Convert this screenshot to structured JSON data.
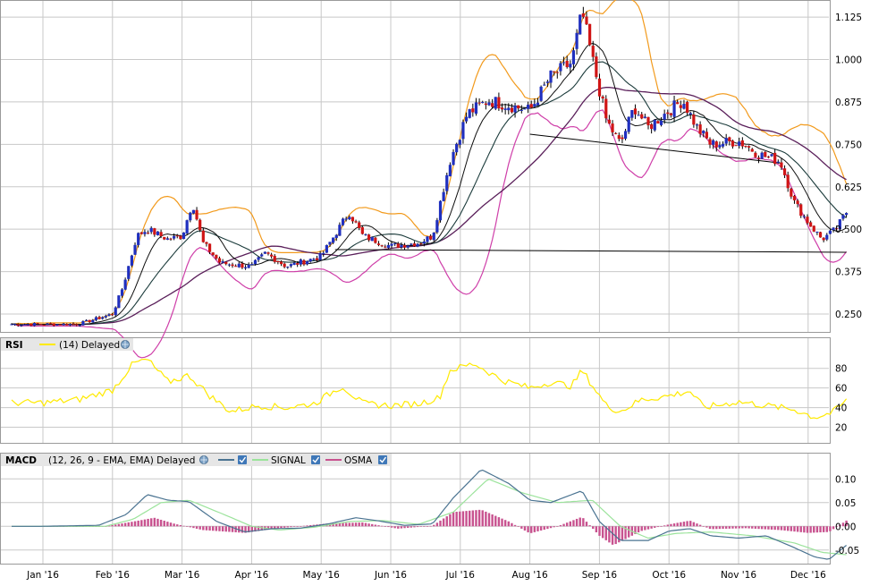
{
  "colors": {
    "up_candle": "#1f2fbf",
    "down_candle": "#d01515",
    "wick": "#000000",
    "bollinger": "#f29a1c",
    "env_lower": "#cf3fa9",
    "ma_long": "#5a1f5a",
    "ma_mid": "#1b3b3b",
    "ma_short": "#0e0e0e",
    "rsi_line": "#ffea00",
    "macd_line": "#4a7391",
    "signal_line": "#9be39b",
    "osma_bar": "#c8528f",
    "grid": "#c8c8c8",
    "panel_header_bg": "#e6e6e6",
    "trendline": "#000000"
  },
  "price_panel": {
    "y_ticks": [
      "1.125",
      "1.000",
      "0.875",
      "0.750",
      "0.625",
      "0.500",
      "0.375",
      "0.250"
    ]
  },
  "rsi_panel": {
    "title": "RSI",
    "legend": "(14) Delayed",
    "legend_icon": "globe-icon",
    "y_ticks": [
      "80",
      "60",
      "40",
      "20"
    ]
  },
  "macd_panel": {
    "title": "MACD",
    "legend_params": "(12, 26, 9 - EMA, EMA) Delayed",
    "signal_label": "SIGNAL",
    "osma_label": "OSMA",
    "y_ticks": [
      "0.10",
      "0.05",
      "0.00",
      "-0.05"
    ]
  },
  "x_axis": {
    "months": [
      "Jan '16",
      "Feb '16",
      "Mar '16",
      "Apr '16",
      "May '16",
      "Jun '16",
      "Jul '16",
      "Aug '16",
      "Sep '16",
      "Oct '16",
      "Nov '16",
      "Dec '16"
    ]
  },
  "chart_data": [
    {
      "type": "candlestick",
      "x_unit": "month",
      "ylim": [
        0.2,
        1.17
      ],
      "y_ticks": [
        1.125,
        1.0,
        0.875,
        0.75,
        0.625,
        0.5,
        0.375,
        0.25
      ],
      "close_keypoints": [
        {
          "m": 0.0,
          "v": 0.22
        },
        {
          "m": 0.5,
          "v": 0.22
        },
        {
          "m": 1.0,
          "v": 0.25
        },
        {
          "m": 1.15,
          "v": 0.33
        },
        {
          "m": 1.35,
          "v": 0.48
        },
        {
          "m": 1.5,
          "v": 0.5
        },
        {
          "m": 1.8,
          "v": 0.47
        },
        {
          "m": 2.0,
          "v": 0.48
        },
        {
          "m": 2.15,
          "v": 0.58
        },
        {
          "m": 2.3,
          "v": 0.46
        },
        {
          "m": 2.55,
          "v": 0.4
        },
        {
          "m": 3.0,
          "v": 0.39
        },
        {
          "m": 3.2,
          "v": 0.43
        },
        {
          "m": 3.5,
          "v": 0.39
        },
        {
          "m": 4.0,
          "v": 0.42
        },
        {
          "m": 4.4,
          "v": 0.55
        },
        {
          "m": 4.6,
          "v": 0.48
        },
        {
          "m": 5.0,
          "v": 0.45
        },
        {
          "m": 5.4,
          "v": 0.46
        },
        {
          "m": 5.6,
          "v": 0.48
        },
        {
          "m": 5.85,
          "v": 0.7
        },
        {
          "m": 6.1,
          "v": 0.84
        },
        {
          "m": 6.4,
          "v": 0.88
        },
        {
          "m": 6.8,
          "v": 0.86
        },
        {
          "m": 7.0,
          "v": 0.85
        },
        {
          "m": 7.3,
          "v": 0.95
        },
        {
          "m": 7.6,
          "v": 0.99
        },
        {
          "m": 7.75,
          "v": 1.14
        },
        {
          "m": 7.9,
          "v": 1.0
        },
        {
          "m": 8.1,
          "v": 0.82
        },
        {
          "m": 8.3,
          "v": 0.75
        },
        {
          "m": 8.5,
          "v": 0.86
        },
        {
          "m": 8.7,
          "v": 0.8
        },
        {
          "m": 9.0,
          "v": 0.85
        },
        {
          "m": 9.2,
          "v": 0.88
        },
        {
          "m": 9.4,
          "v": 0.8
        },
        {
          "m": 9.6,
          "v": 0.75
        },
        {
          "m": 10.0,
          "v": 0.76
        },
        {
          "m": 10.3,
          "v": 0.72
        },
        {
          "m": 10.6,
          "v": 0.7
        },
        {
          "m": 10.8,
          "v": 0.58
        },
        {
          "m": 11.0,
          "v": 0.52
        },
        {
          "m": 11.2,
          "v": 0.47
        },
        {
          "m": 11.4,
          "v": 0.5
        },
        {
          "m": 11.55,
          "v": 0.55
        }
      ],
      "overlays": [
        "Bollinger upper",
        "Bollinger lower",
        "moving average short",
        "moving average mid",
        "moving average long"
      ],
      "trendlines": [
        {
          "from": {
            "m": 4.2,
            "v": 0.44
          },
          "to": {
            "m": 11.55,
            "v": 0.432
          }
        },
        {
          "from": {
            "m": 7.0,
            "v": 0.78
          },
          "to": {
            "m": 10.6,
            "v": 0.695
          }
        }
      ]
    },
    {
      "type": "line",
      "name": "RSI",
      "ylim": [
        5,
        98
      ],
      "y_ticks": [
        80,
        60,
        40,
        20
      ],
      "keypoints": [
        {
          "m": 0.0,
          "v": 45
        },
        {
          "m": 0.5,
          "v": 48
        },
        {
          "m": 1.0,
          "v": 58
        },
        {
          "m": 1.3,
          "v": 85
        },
        {
          "m": 1.5,
          "v": 89
        },
        {
          "m": 1.8,
          "v": 66
        },
        {
          "m": 2.1,
          "v": 73
        },
        {
          "m": 2.4,
          "v": 52
        },
        {
          "m": 2.7,
          "v": 36
        },
        {
          "m": 3.1,
          "v": 42
        },
        {
          "m": 3.5,
          "v": 40
        },
        {
          "m": 3.9,
          "v": 44
        },
        {
          "m": 4.3,
          "v": 62
        },
        {
          "m": 4.6,
          "v": 44
        },
        {
          "m": 5.0,
          "v": 42
        },
        {
          "m": 5.4,
          "v": 44
        },
        {
          "m": 5.7,
          "v": 50
        },
        {
          "m": 5.85,
          "v": 78
        },
        {
          "m": 6.2,
          "v": 85
        },
        {
          "m": 6.6,
          "v": 68
        },
        {
          "m": 7.0,
          "v": 60
        },
        {
          "m": 7.3,
          "v": 66
        },
        {
          "m": 7.6,
          "v": 62
        },
        {
          "m": 7.75,
          "v": 78
        },
        {
          "m": 8.1,
          "v": 42
        },
        {
          "m": 8.3,
          "v": 36
        },
        {
          "m": 8.6,
          "v": 48
        },
        {
          "m": 9.0,
          "v": 52
        },
        {
          "m": 9.3,
          "v": 57
        },
        {
          "m": 9.5,
          "v": 40
        },
        {
          "m": 10.0,
          "v": 46
        },
        {
          "m": 10.4,
          "v": 42
        },
        {
          "m": 10.8,
          "v": 38
        },
        {
          "m": 11.1,
          "v": 30
        },
        {
          "m": 11.35,
          "v": 35
        },
        {
          "m": 11.55,
          "v": 47
        }
      ]
    },
    {
      "type": "line+bar",
      "name": "MACD",
      "ylim": [
        -0.075,
        0.125
      ],
      "y_ticks": [
        0.1,
        0.05,
        0.0,
        -0.05
      ],
      "series": [
        {
          "name": "MACD",
          "keypoints": [
            {
              "m": 0.0,
              "v": 0.0
            },
            {
              "m": 0.8,
              "v": 0.002
            },
            {
              "m": 1.2,
              "v": 0.025
            },
            {
              "m": 1.5,
              "v": 0.067
            },
            {
              "m": 1.8,
              "v": 0.055
            },
            {
              "m": 2.1,
              "v": 0.052
            },
            {
              "m": 2.5,
              "v": 0.01
            },
            {
              "m": 2.9,
              "v": -0.012
            },
            {
              "m": 3.3,
              "v": -0.005
            },
            {
              "m": 3.7,
              "v": -0.004
            },
            {
              "m": 4.1,
              "v": 0.005
            },
            {
              "m": 4.5,
              "v": 0.018
            },
            {
              "m": 4.8,
              "v": 0.012
            },
            {
              "m": 5.2,
              "v": 0.002
            },
            {
              "m": 5.6,
              "v": 0.005
            },
            {
              "m": 5.9,
              "v": 0.06
            },
            {
              "m": 6.3,
              "v": 0.12
            },
            {
              "m": 6.7,
              "v": 0.09
            },
            {
              "m": 7.0,
              "v": 0.055
            },
            {
              "m": 7.3,
              "v": 0.05
            },
            {
              "m": 7.75,
              "v": 0.075
            },
            {
              "m": 8.0,
              "v": 0.01
            },
            {
              "m": 8.3,
              "v": -0.03
            },
            {
              "m": 8.7,
              "v": -0.03
            },
            {
              "m": 9.0,
              "v": -0.01
            },
            {
              "m": 9.3,
              "v": -0.005
            },
            {
              "m": 9.6,
              "v": -0.02
            },
            {
              "m": 10.0,
              "v": -0.025
            },
            {
              "m": 10.4,
              "v": -0.02
            },
            {
              "m": 10.8,
              "v": -0.045
            },
            {
              "m": 11.1,
              "v": -0.065
            },
            {
              "m": 11.3,
              "v": -0.07
            },
            {
              "m": 11.55,
              "v": -0.04
            }
          ]
        },
        {
          "name": "SIGNAL",
          "keypoints": [
            {
              "m": 0.0,
              "v": 0.0
            },
            {
              "m": 0.9,
              "v": 0.0
            },
            {
              "m": 1.3,
              "v": 0.015
            },
            {
              "m": 1.7,
              "v": 0.05
            },
            {
              "m": 2.1,
              "v": 0.055
            },
            {
              "m": 2.6,
              "v": 0.025
            },
            {
              "m": 3.0,
              "v": 0.0
            },
            {
              "m": 3.4,
              "v": -0.008
            },
            {
              "m": 3.9,
              "v": -0.002
            },
            {
              "m": 4.4,
              "v": 0.01
            },
            {
              "m": 4.9,
              "v": 0.012
            },
            {
              "m": 5.4,
              "v": 0.004
            },
            {
              "m": 5.9,
              "v": 0.03
            },
            {
              "m": 6.4,
              "v": 0.1
            },
            {
              "m": 6.9,
              "v": 0.07
            },
            {
              "m": 7.4,
              "v": 0.05
            },
            {
              "m": 7.9,
              "v": 0.055
            },
            {
              "m": 8.3,
              "v": 0.0
            },
            {
              "m": 8.7,
              "v": -0.025
            },
            {
              "m": 9.1,
              "v": -0.015
            },
            {
              "m": 9.6,
              "v": -0.012
            },
            {
              "m": 10.2,
              "v": -0.02
            },
            {
              "m": 10.8,
              "v": -0.035
            },
            {
              "m": 11.2,
              "v": -0.055
            },
            {
              "m": 11.55,
              "v": -0.06
            }
          ]
        },
        {
          "name": "OSMA",
          "keypoints": [
            {
              "m": 0.0,
              "v": 0.0
            },
            {
              "m": 0.9,
              "v": 0.0
            },
            {
              "m": 1.3,
              "v": 0.01
            },
            {
              "m": 1.6,
              "v": 0.018
            },
            {
              "m": 1.9,
              "v": 0.005
            },
            {
              "m": 2.3,
              "v": -0.008
            },
            {
              "m": 2.9,
              "v": -0.014
            },
            {
              "m": 3.4,
              "v": -0.004
            },
            {
              "m": 4.1,
              "v": 0.006
            },
            {
              "m": 4.6,
              "v": 0.008
            },
            {
              "m": 5.1,
              "v": -0.005
            },
            {
              "m": 5.6,
              "v": 0.001
            },
            {
              "m": 5.9,
              "v": 0.03
            },
            {
              "m": 6.3,
              "v": 0.035
            },
            {
              "m": 6.7,
              "v": 0.01
            },
            {
              "m": 7.0,
              "v": -0.015
            },
            {
              "m": 7.4,
              "v": 0.0
            },
            {
              "m": 7.75,
              "v": 0.02
            },
            {
              "m": 8.0,
              "v": -0.02
            },
            {
              "m": 8.2,
              "v": -0.04
            },
            {
              "m": 8.6,
              "v": -0.01
            },
            {
              "m": 9.0,
              "v": 0.004
            },
            {
              "m": 9.3,
              "v": 0.012
            },
            {
              "m": 9.6,
              "v": -0.006
            },
            {
              "m": 10.1,
              "v": -0.004
            },
            {
              "m": 10.6,
              "v": -0.008
            },
            {
              "m": 11.0,
              "v": -0.014
            },
            {
              "m": 11.3,
              "v": -0.012
            },
            {
              "m": 11.55,
              "v": 0.012
            }
          ]
        }
      ]
    }
  ]
}
